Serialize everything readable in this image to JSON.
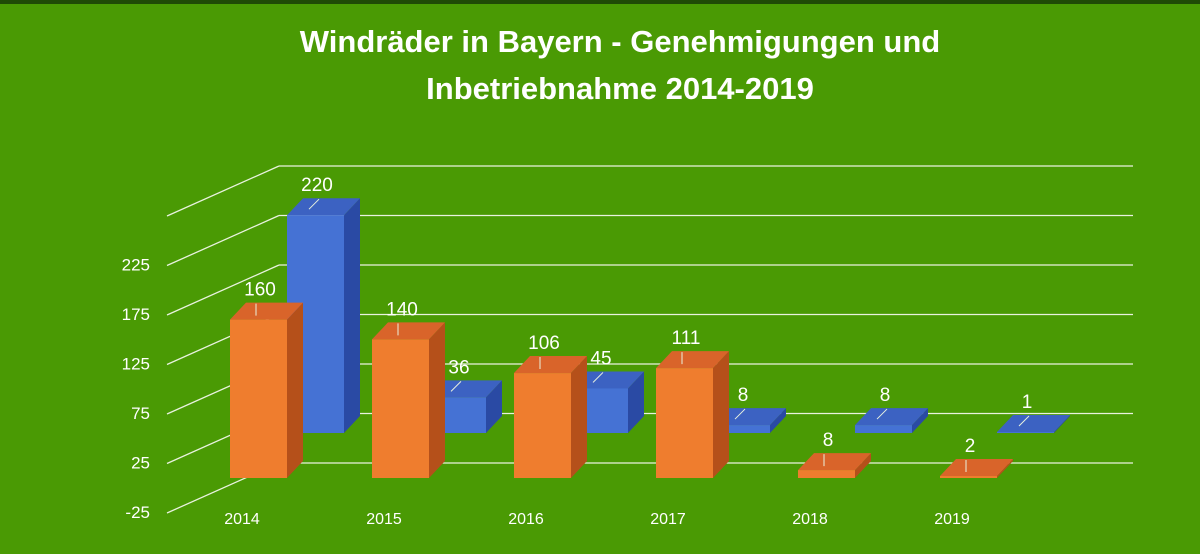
{
  "colors": {
    "background": "#4a9a04",
    "top_strip": "#1f4a06",
    "grid": "#e9f2df",
    "text": "#ffffff",
    "orange_front": "#ef7d2e",
    "orange_side": "#b5501a",
    "orange_top": "#d9642a",
    "blue_front": "#4572d4",
    "blue_side": "#2a4aa4",
    "blue_top": "#3c62c2"
  },
  "chart_data": {
    "type": "bar",
    "style": "3d-clustered",
    "title_lines": [
      "Windräder in Bayern - Genehmigungen und",
      "Inbetriebnahme 2014-2019"
    ],
    "categories": [
      "2014",
      "2015",
      "2016",
      "2017",
      "2018",
      "2019"
    ],
    "series": [
      {
        "name": "front-series",
        "color": "orange",
        "values": [
          160,
          140,
          106,
          111,
          8,
          2
        ]
      },
      {
        "name": "back-series",
        "color": "blue",
        "values": [
          220,
          36,
          45,
          8,
          8,
          1
        ]
      }
    ],
    "y_ticks": [
      "-25",
      "25",
      "75",
      "125",
      "175",
      "225"
    ],
    "ylim": [
      -25,
      275
    ],
    "grid": true,
    "legend": "none"
  }
}
